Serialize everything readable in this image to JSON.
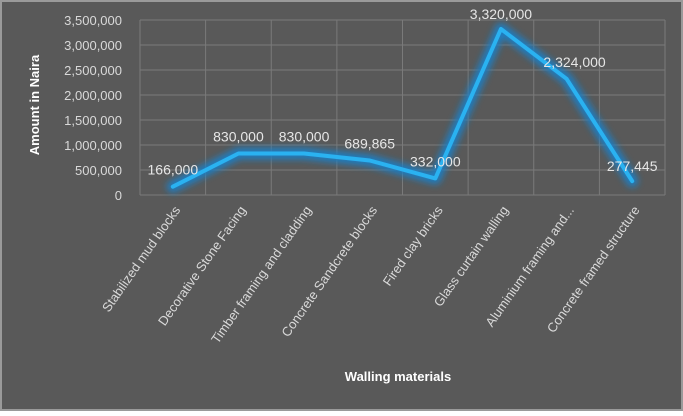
{
  "chart_data": {
    "type": "line",
    "title": "",
    "xlabel": "Walling materials",
    "ylabel": "Amount in Naira",
    "categories": [
      "Stabilized mud blocks",
      "Decorative Stone Facing",
      "Timber framing and cladding",
      "Concrete Sandcrete blocks",
      "Fired clay bricks",
      "Glass curtain walling",
      "Aluminium framing and...",
      "Concrete framed structure"
    ],
    "series": [
      {
        "values": [
          166000,
          830000,
          830000,
          689865,
          332000,
          3320000,
          2324000,
          277445
        ],
        "data_labels": [
          "166,000",
          "830,000",
          "830,000",
          "689,865",
          "332,000",
          "3,320,000",
          "2,324,000",
          "277,445"
        ]
      }
    ],
    "ylim": [
      0,
      3500000
    ],
    "yticks": [
      0,
      500000,
      1000000,
      1500000,
      2000000,
      2500000,
      3000000,
      3500000
    ],
    "ytick_labels": [
      "0",
      "500,000",
      "1,000,000",
      "1,500,000",
      "2,000,000",
      "2,500,000",
      "3,000,000",
      "3,500,000"
    ],
    "grid": true,
    "legend": "none",
    "colors": {
      "background": "#595959",
      "border": "#9a9a9a",
      "line": "#2ab2f1",
      "glow": "#1d7fc4",
      "grid": "#7a7a7a"
    }
  }
}
